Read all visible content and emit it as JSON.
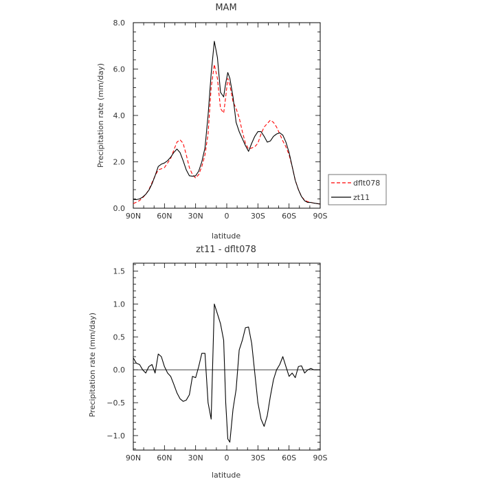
{
  "chart_data": [
    {
      "type": "line",
      "title": "MAM",
      "xlabel": "latitude",
      "ylabel": "Precipitation rate (mm/day)",
      "xlim": [
        -90,
        90
      ],
      "ylim": [
        0,
        8
      ],
      "x_ticks": [
        {
          "value": -90,
          "label": "90N"
        },
        {
          "value": -60,
          "label": "60N"
        },
        {
          "value": -30,
          "label": "30N"
        },
        {
          "value": 0,
          "label": "0"
        },
        {
          "value": 30,
          "label": "30S"
        },
        {
          "value": 60,
          "label": "60S"
        },
        {
          "value": 90,
          "label": "90S"
        }
      ],
      "y_ticks": [
        {
          "value": 0,
          "label": "0.0"
        },
        {
          "value": 2,
          "label": "2.0"
        },
        {
          "value": 4,
          "label": "4.0"
        },
        {
          "value": 6,
          "label": "6.0"
        },
        {
          "value": 8,
          "label": "8.0"
        }
      ],
      "legend": {
        "placement": "right",
        "entries": [
          {
            "name": "dflt078",
            "color": "#ff0000",
            "dash": "dashed"
          },
          {
            "name": "zt11",
            "color": "#000000",
            "dash": "solid"
          }
        ]
      },
      "series": [
        {
          "name": "dflt078",
          "color": "#ff0000",
          "dash": "dashed",
          "x": [
            -90,
            -87,
            -84,
            -81,
            -78,
            -75,
            -72,
            -69,
            -66,
            -63,
            -60,
            -57,
            -54,
            -51,
            -48,
            -45,
            -42,
            -39,
            -36,
            -33,
            -30,
            -27,
            -24,
            -21,
            -18,
            -15,
            -12,
            -9,
            -6,
            -3,
            -1,
            1,
            3,
            6,
            9,
            12,
            15,
            18,
            21,
            24,
            27,
            30,
            33,
            36,
            39,
            42,
            45,
            48,
            51,
            54,
            57,
            60,
            63,
            66,
            69,
            72,
            75,
            78,
            81,
            84,
            87,
            90
          ],
          "y": [
            0.2,
            0.26,
            0.33,
            0.45,
            0.6,
            0.8,
            1.1,
            1.4,
            1.65,
            1.7,
            1.75,
            1.95,
            2.15,
            2.5,
            2.85,
            2.95,
            2.8,
            2.3,
            1.75,
            1.45,
            1.3,
            1.45,
            1.8,
            2.3,
            3.2,
            5.2,
            6.2,
            5.6,
            4.3,
            4.1,
            4.8,
            5.6,
            5.3,
            4.6,
            4.3,
            3.9,
            3.3,
            2.8,
            2.55,
            2.6,
            2.65,
            2.8,
            3.2,
            3.5,
            3.65,
            3.8,
            3.7,
            3.5,
            3.2,
            2.9,
            2.65,
            2.3,
            1.8,
            1.2,
            0.8,
            0.5,
            0.35,
            0.28,
            0.25,
            0.22,
            0.2,
            0.18
          ]
        },
        {
          "name": "zt11",
          "color": "#000000",
          "dash": "solid",
          "x": [
            -90,
            -87,
            -84,
            -81,
            -78,
            -75,
            -72,
            -69,
            -66,
            -63,
            -60,
            -57,
            -54,
            -51,
            -48,
            -45,
            -42,
            -39,
            -36,
            -33,
            -30,
            -27,
            -24,
            -21,
            -18,
            -15,
            -12,
            -9,
            -6,
            -3,
            -1,
            1,
            3,
            6,
            9,
            12,
            15,
            18,
            21,
            24,
            27,
            30,
            33,
            36,
            39,
            42,
            45,
            48,
            51,
            54,
            57,
            60,
            63,
            66,
            69,
            72,
            75,
            78,
            81,
            84,
            87,
            90
          ],
          "y": [
            0.38,
            0.37,
            0.4,
            0.48,
            0.6,
            0.78,
            1.05,
            1.4,
            1.8,
            1.9,
            1.95,
            2.05,
            2.2,
            2.4,
            2.55,
            2.4,
            2.05,
            1.65,
            1.4,
            1.38,
            1.4,
            1.6,
            2.0,
            2.6,
            4.0,
            5.8,
            7.2,
            6.5,
            5.0,
            4.8,
            5.4,
            5.85,
            5.6,
            4.8,
            3.7,
            3.3,
            3.0,
            2.7,
            2.45,
            2.8,
            3.1,
            3.3,
            3.3,
            3.1,
            2.85,
            2.9,
            3.1,
            3.2,
            3.25,
            3.15,
            2.85,
            2.4,
            1.8,
            1.2,
            0.8,
            0.5,
            0.32,
            0.25,
            0.25,
            0.22,
            0.2,
            0.18
          ]
        }
      ]
    },
    {
      "type": "line",
      "title": "zt11 - dflt078",
      "xlabel": "latitude",
      "ylabel": "Precipitation rate (mm/day)",
      "xlim": [
        -90,
        90
      ],
      "ylim": [
        -1.22,
        1.62
      ],
      "x_ticks": [
        {
          "value": -90,
          "label": "90N"
        },
        {
          "value": -60,
          "label": "60N"
        },
        {
          "value": -30,
          "label": "30N"
        },
        {
          "value": 0,
          "label": "0"
        },
        {
          "value": 30,
          "label": "30S"
        },
        {
          "value": 60,
          "label": "60S"
        },
        {
          "value": 90,
          "label": "90S"
        }
      ],
      "y_ticks": [
        {
          "value": -1.0,
          "label": "−1.0"
        },
        {
          "value": -0.5,
          "label": "−0.5"
        },
        {
          "value": 0.0,
          "label": "0.0"
        },
        {
          "value": 0.5,
          "label": "0.5"
        },
        {
          "value": 1.0,
          "label": "1.0"
        },
        {
          "value": 1.5,
          "label": "1.5"
        }
      ],
      "zero_line": true,
      "series": [
        {
          "name": "zt11 - dflt078",
          "color": "#000000",
          "dash": "solid",
          "x": [
            -90,
            -87,
            -84,
            -81,
            -78,
            -75,
            -72,
            -69,
            -66,
            -63,
            -60,
            -57,
            -54,
            -51,
            -48,
            -45,
            -42,
            -39,
            -36,
            -33,
            -30,
            -27,
            -24,
            -21,
            -18,
            -15,
            -12,
            -9,
            -6,
            -3,
            -1,
            1,
            3,
            6,
            9,
            12,
            15,
            18,
            21,
            24,
            27,
            30,
            33,
            36,
            39,
            42,
            45,
            48,
            51,
            54,
            57,
            60,
            63,
            66,
            69,
            72,
            75,
            78,
            81,
            84,
            87,
            90
          ],
          "y": [
            0.18,
            0.1,
            0.08,
            0.0,
            -0.05,
            0.05,
            0.08,
            -0.05,
            0.24,
            0.2,
            0.05,
            -0.05,
            -0.1,
            -0.22,
            -0.35,
            -0.44,
            -0.48,
            -0.46,
            -0.38,
            -0.1,
            -0.12,
            0.05,
            0.25,
            0.25,
            -0.5,
            -0.75,
            1.0,
            0.85,
            0.7,
            0.45,
            -0.5,
            -1.05,
            -1.1,
            -0.6,
            -0.3,
            0.3,
            0.45,
            0.64,
            0.65,
            0.4,
            -0.05,
            -0.5,
            -0.75,
            -0.86,
            -0.7,
            -0.4,
            -0.15,
            0.0,
            0.08,
            0.2,
            0.05,
            -0.1,
            -0.05,
            -0.12,
            0.05,
            0.06,
            -0.05,
            0.0,
            0.02,
            0.0,
            0.0,
            0.0
          ]
        }
      ]
    }
  ]
}
